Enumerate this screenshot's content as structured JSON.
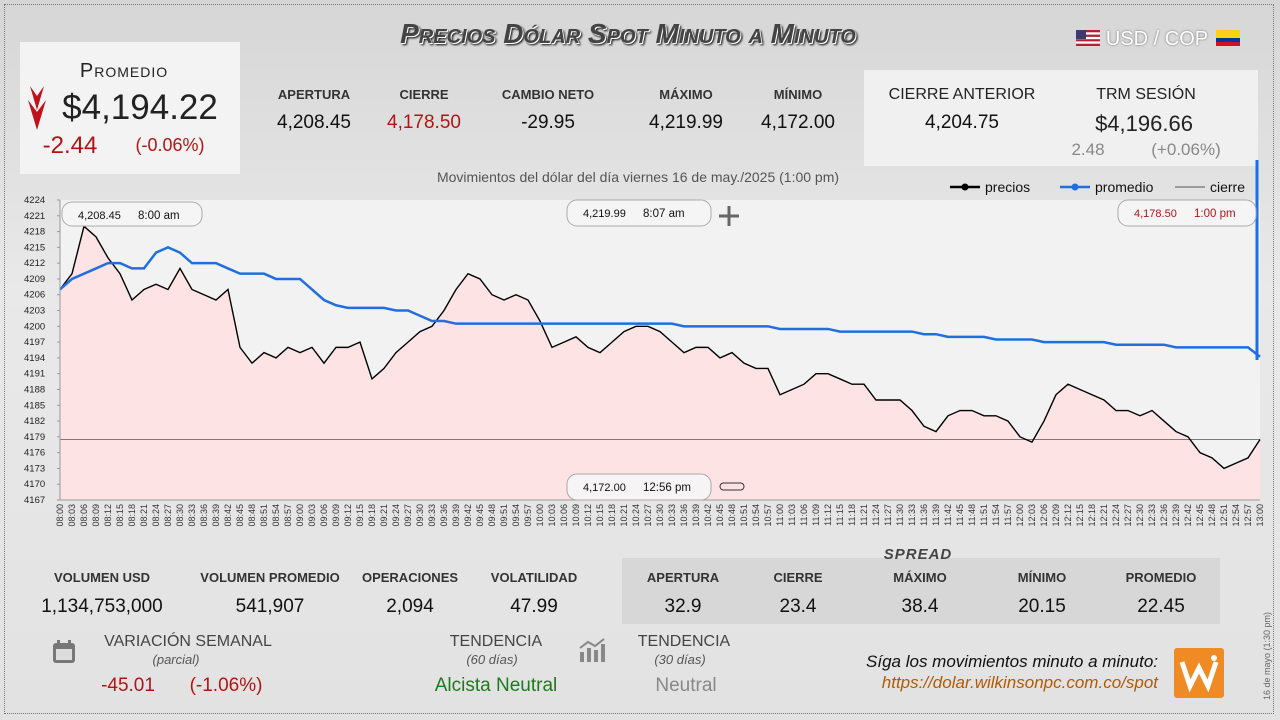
{
  "header": {
    "title": "Precios Dólar Spot Minuto a Minuto",
    "pair": "USD / COP"
  },
  "average": {
    "label": "Promedio",
    "value": "$4,194.22",
    "change": "-2.44",
    "change_pct": "(-0.06%)"
  },
  "session": [
    {
      "label": "APERTURA",
      "value": "4,208.45"
    },
    {
      "label": "CIERRE",
      "value": "4,178.50"
    },
    {
      "label": "CAMBIO NETO",
      "value": "-29.95"
    },
    {
      "label": "MÁXIMO",
      "value": "4,219.99"
    },
    {
      "label": "MÍNIMO",
      "value": "4,172.00"
    }
  ],
  "previous_close": {
    "label": "CIERRE ANTERIOR",
    "value": "4,204.75"
  },
  "trm": {
    "label": "TRM SESIÓN",
    "value": "$4,196.66",
    "change": "2.48",
    "change_pct": "(+0.06%)"
  },
  "chart_data": {
    "type": "line",
    "title": "Movimientos del dólar del día viernes 16 de may./2025 (1:00 pm)",
    "categories": [
      "08:00",
      "08:03",
      "08:06",
      "08:09",
      "08:12",
      "08:15",
      "08:18",
      "08:21",
      "08:24",
      "08:27",
      "08:30",
      "08:33",
      "08:36",
      "08:39",
      "08:42",
      "08:45",
      "08:48",
      "08:51",
      "08:54",
      "08:57",
      "09:00",
      "09:03",
      "09:06",
      "09:09",
      "09:12",
      "09:15",
      "09:18",
      "09:21",
      "09:24",
      "09:27",
      "09:30",
      "09:33",
      "09:36",
      "09:39",
      "09:42",
      "09:45",
      "09:48",
      "09:51",
      "09:54",
      "09:57",
      "10:00",
      "10:03",
      "10:06",
      "10:09",
      "10:12",
      "10:15",
      "10:18",
      "10:21",
      "10:24",
      "10:27",
      "10:30",
      "10:33",
      "10:36",
      "10:39",
      "10:42",
      "10:45",
      "10:48",
      "10:51",
      "10:54",
      "10:57",
      "11:00",
      "11:03",
      "11:06",
      "11:09",
      "11:12",
      "11:15",
      "11:18",
      "11:21",
      "11:24",
      "11:27",
      "11:30",
      "11:33",
      "11:36",
      "11:39",
      "11:42",
      "11:45",
      "11:48",
      "11:51",
      "11:54",
      "11:57",
      "12:00",
      "12:03",
      "12:06",
      "12:09",
      "12:12",
      "12:15",
      "12:18",
      "12:21",
      "12:24",
      "12:27",
      "12:30",
      "12:33",
      "12:36",
      "12:39",
      "12:42",
      "12:45",
      "12:48",
      "12:51",
      "12:54",
      "12:57",
      "13:00"
    ],
    "series": [
      {
        "name": "precios",
        "color": "#000000",
        "values": [
          4207,
          4210,
          4219,
          4217,
          4213,
          4210,
          4205,
          4207,
          4208,
          4207,
          4211,
          4207,
          4206,
          4205,
          4207,
          4196,
          4193,
          4195,
          4194,
          4196,
          4195,
          4196,
          4193,
          4196,
          4196,
          4197,
          4190,
          4192,
          4195,
          4197,
          4199,
          4200,
          4203,
          4207,
          4210,
          4209,
          4206,
          4205,
          4206,
          4205,
          4201,
          4196,
          4197,
          4198,
          4196,
          4195,
          4197,
          4199,
          4200,
          4200,
          4199,
          4197,
          4195,
          4196,
          4196,
          4194,
          4195,
          4193,
          4192,
          4192,
          4187,
          4188,
          4189,
          4191,
          4191,
          4190,
          4189,
          4189,
          4186,
          4186,
          4186,
          4184,
          4181,
          4180,
          4183,
          4184,
          4184,
          4183,
          4183,
          4182,
          4179,
          4178,
          4182,
          4187,
          4189,
          4188,
          4187,
          4186,
          4184,
          4184,
          4183,
          4184,
          4182,
          4180,
          4179,
          4176,
          4175,
          4173,
          4174,
          4175,
          4178.5
        ]
      },
      {
        "name": "promedio",
        "color": "#1f6fe0",
        "values": [
          4207,
          4209,
          4210,
          4211,
          4212,
          4212,
          4211,
          4211,
          4214,
          4215,
          4214,
          4212,
          4212,
          4212,
          4211,
          4210,
          4210,
          4210,
          4209,
          4209,
          4209,
          4207,
          4205,
          4204,
          4203.5,
          4203.5,
          4203.5,
          4203.5,
          4203,
          4203,
          4202,
          4201,
          4201,
          4200.5,
          4200.5,
          4200.5,
          4200.5,
          4200.5,
          4200.5,
          4200.5,
          4200.5,
          4200.5,
          4200.5,
          4200.5,
          4200.5,
          4200.5,
          4200.5,
          4200.5,
          4200.5,
          4200.5,
          4200.5,
          4200.5,
          4200,
          4200,
          4200,
          4200,
          4200,
          4200,
          4200,
          4200,
          4199.5,
          4199.5,
          4199.5,
          4199.5,
          4199.5,
          4199,
          4199,
          4199,
          4199,
          4199,
          4199,
          4199,
          4198.5,
          4198.5,
          4198,
          4198,
          4198,
          4198,
          4197.5,
          4197.5,
          4197.5,
          4197.5,
          4197,
          4197,
          4197,
          4197,
          4197,
          4197,
          4196.5,
          4196.5,
          4196.5,
          4196.5,
          4196.5,
          4196,
          4196,
          4196,
          4196,
          4196,
          4196,
          4196,
          4194.22
        ]
      }
    ],
    "reference_line": {
      "name": "cierre",
      "value": 4178.5,
      "color": "#555555"
    },
    "area_color": "#fde3e3",
    "ylim": [
      4167,
      4224
    ],
    "yticks": [
      4167,
      4170,
      4173,
      4176,
      4179,
      4182,
      4185,
      4188,
      4191,
      4194,
      4197,
      4200,
      4203,
      4206,
      4209,
      4212,
      4215,
      4218,
      4221,
      4224
    ],
    "grid": false,
    "annotations": [
      {
        "value": "4,208.45",
        "time": "8:00 am"
      },
      {
        "value": "4,219.99",
        "time": "8:07 am"
      },
      {
        "value": "4,178.50",
        "time": "1:00 pm"
      },
      {
        "value": "4,172.00",
        "time": "12:56 pm"
      }
    ]
  },
  "market": [
    {
      "label": "VOLUMEN USD",
      "value": "1,134,753,000"
    },
    {
      "label": "VOLUMEN PROMEDIO",
      "value": "541,907"
    },
    {
      "label": "OPERACIONES",
      "value": "2,094"
    },
    {
      "label": "VOLATILIDAD",
      "value": "47.99"
    }
  ],
  "spread": {
    "title": "SPREAD",
    "items": [
      {
        "label": "APERTURA",
        "value": "32.9"
      },
      {
        "label": "CIERRE",
        "value": "23.4"
      },
      {
        "label": "MÁXIMO",
        "value": "38.4"
      },
      {
        "label": "MÍNIMO",
        "value": "20.15"
      },
      {
        "label": "PROMEDIO",
        "value": "22.45"
      }
    ]
  },
  "weekly": {
    "label": "VARIACIÓN SEMANAL",
    "note": "(parcial)",
    "change": "-45.01",
    "change_pct": "(-1.06%)"
  },
  "trend_60": {
    "label": "TENDENCIA",
    "note": "(60 días)",
    "value": "Alcista Neutral"
  },
  "trend_30": {
    "label": "TENDENCIA",
    "note": "(30 días)",
    "value": "Neutral"
  },
  "footer": {
    "text": "Síga los movimientos minuto a minuto:",
    "url": "https://dolar.wilkinsonpc.com.co/spot"
  },
  "timestamp": "16 de mayo (1:30 pm)"
}
